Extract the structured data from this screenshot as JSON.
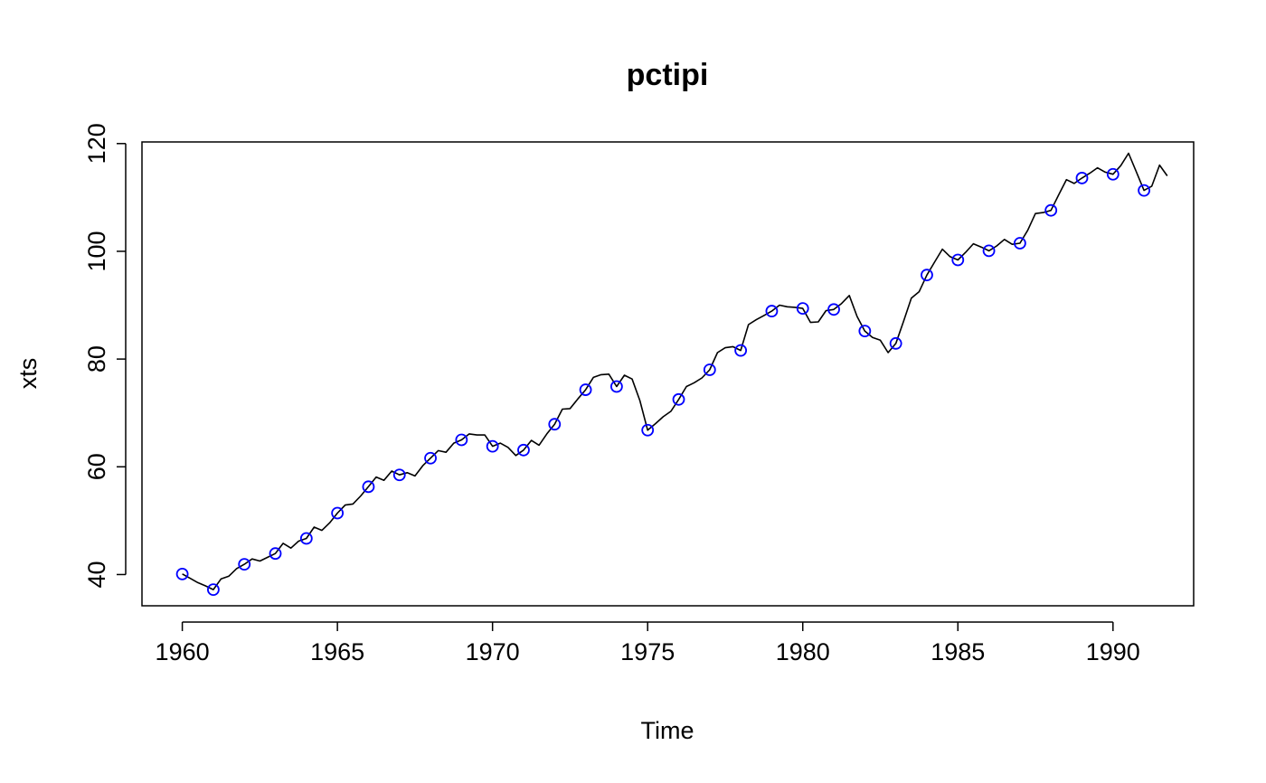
{
  "chart_data": {
    "type": "line",
    "title": "pctipi",
    "xlabel": "Time",
    "ylabel": "xts",
    "xlim": [
      1958.7,
      1992.6
    ],
    "ylim": [
      34.2,
      120.3
    ],
    "xticks": [
      1960,
      1965,
      1970,
      1975,
      1980,
      1985,
      1990
    ],
    "yticks": [
      40,
      60,
      80,
      100,
      120
    ],
    "grid": false,
    "legend": "none",
    "colors": {
      "line": "#000000",
      "points": "#0000ff"
    },
    "series": [
      {
        "style": "line",
        "x": [
          1960.0,
          1960.25,
          1960.5,
          1960.75,
          1961.0,
          1961.25,
          1961.5,
          1961.75,
          1962.0,
          1962.25,
          1962.5,
          1962.75,
          1963.0,
          1963.25,
          1963.5,
          1963.75,
          1964.0,
          1964.25,
          1964.5,
          1964.75,
          1965.0,
          1965.25,
          1965.5,
          1965.75,
          1966.0,
          1966.25,
          1966.5,
          1966.75,
          1967.0,
          1967.25,
          1967.5,
          1967.75,
          1968.0,
          1968.25,
          1968.5,
          1968.75,
          1969.0,
          1969.25,
          1969.5,
          1969.75,
          1970.0,
          1970.25,
          1970.5,
          1970.75,
          1971.0,
          1971.25,
          1971.5,
          1971.75,
          1972.0,
          1972.25,
          1972.5,
          1972.75,
          1973.0,
          1973.25,
          1973.5,
          1973.75,
          1974.0,
          1974.25,
          1974.5,
          1974.75,
          1975.0,
          1975.25,
          1975.5,
          1975.75,
          1976.0,
          1976.25,
          1976.5,
          1976.75,
          1977.0,
          1977.25,
          1977.5,
          1977.75,
          1978.0,
          1978.25,
          1978.5,
          1978.75,
          1979.0,
          1979.25,
          1979.5,
          1979.75,
          1980.0,
          1980.25,
          1980.5,
          1980.75,
          1981.0,
          1981.25,
          1981.5,
          1981.75,
          1982.0,
          1982.25,
          1982.5,
          1982.75,
          1983.0,
          1983.25,
          1983.5,
          1983.75,
          1984.0,
          1984.25,
          1984.5,
          1984.75,
          1985.0,
          1985.25,
          1985.5,
          1985.75,
          1986.0,
          1986.25,
          1986.5,
          1986.75,
          1987.0,
          1987.25,
          1987.5,
          1987.75,
          1988.0,
          1988.25,
          1988.5,
          1988.75,
          1989.0,
          1989.25,
          1989.5,
          1989.75,
          1990.0,
          1990.25,
          1990.5,
          1990.75,
          1991.0,
          1991.25,
          1991.5,
          1991.75
        ],
        "y": [
          40.1,
          39.3,
          38.5,
          37.9,
          37.2,
          39.2,
          39.7,
          41.1,
          41.9,
          42.9,
          42.5,
          43.2,
          43.9,
          45.8,
          44.9,
          46.2,
          46.7,
          48.8,
          48.2,
          49.6,
          51.4,
          52.9,
          53.1,
          54.6,
          56.3,
          58.1,
          57.5,
          59.2,
          58.5,
          58.9,
          58.3,
          60.2,
          61.6,
          63.0,
          62.7,
          64.4,
          65.0,
          66.1,
          65.9,
          65.9,
          63.8,
          64.4,
          63.6,
          62.1,
          63.1,
          64.9,
          64.0,
          66.1,
          67.9,
          70.7,
          70.8,
          72.6,
          74.3,
          76.6,
          77.1,
          77.2,
          74.9,
          77.0,
          76.3,
          72.3,
          66.8,
          68.0,
          69.3,
          70.3,
          72.5,
          74.9,
          75.6,
          76.5,
          78.0,
          81.2,
          82.1,
          82.3,
          81.6,
          86.4,
          87.3,
          88.1,
          88.9,
          90.0,
          89.7,
          89.6,
          89.4,
          86.8,
          86.9,
          89.0,
          89.2,
          90.3,
          91.8,
          87.9,
          85.2,
          84.0,
          83.5,
          81.2,
          82.9,
          87.0,
          91.3,
          92.5,
          95.6,
          98.0,
          100.4,
          99.0,
          98.4,
          99.8,
          101.4,
          100.8,
          100.1,
          101.0,
          102.2,
          101.3,
          101.5,
          103.9,
          107.0,
          107.2,
          107.6,
          110.5,
          113.3,
          112.6,
          113.6,
          114.5,
          115.5,
          114.7,
          114.3,
          115.9,
          118.2,
          114.8,
          111.3,
          112.1,
          116.0,
          114.0
        ]
      },
      {
        "style": "points",
        "x": [
          1960,
          1961,
          1962,
          1963,
          1964,
          1965,
          1966,
          1967,
          1968,
          1969,
          1970,
          1971,
          1972,
          1973,
          1974,
          1975,
          1976,
          1977,
          1978,
          1979,
          1980,
          1981,
          1982,
          1983,
          1984,
          1985,
          1986,
          1987,
          1988,
          1989,
          1990,
          1991
        ],
        "y": [
          40.1,
          37.2,
          41.9,
          43.9,
          46.7,
          51.4,
          56.3,
          58.5,
          61.6,
          65.0,
          63.8,
          63.1,
          67.9,
          74.3,
          74.9,
          66.8,
          72.5,
          78.0,
          81.6,
          88.9,
          89.4,
          89.2,
          85.2,
          82.9,
          95.6,
          98.4,
          100.1,
          101.5,
          107.6,
          113.6,
          114.3,
          111.3
        ]
      }
    ]
  }
}
